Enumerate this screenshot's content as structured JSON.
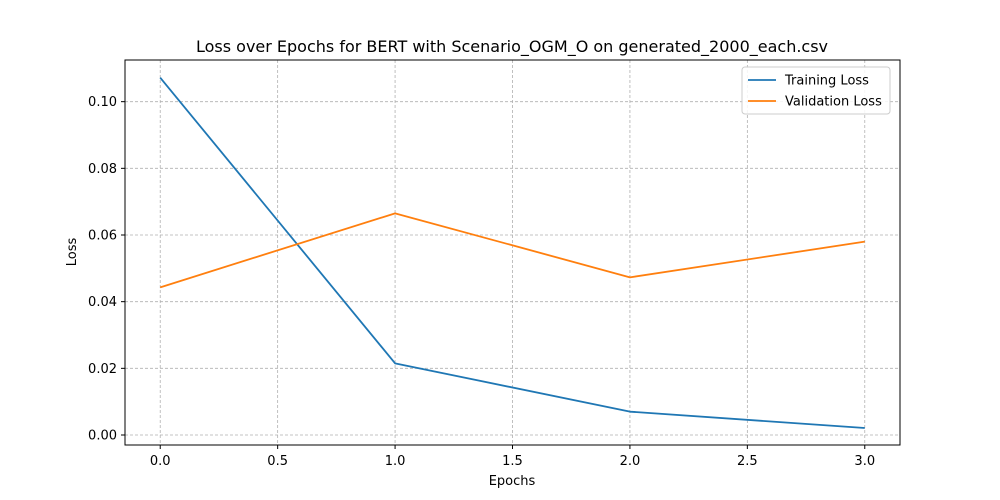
{
  "chart_data": {
    "type": "line",
    "title": "Loss over Epochs for BERT with Scenario_OGM_O on generated_2000_each.csv",
    "xlabel": "Epochs",
    "ylabel": "Loss",
    "x": [
      0,
      1,
      2,
      3
    ],
    "xlim": [
      -0.15,
      3.15
    ],
    "ylim": [
      -0.003,
      0.1125
    ],
    "xticks": [
      0.0,
      0.5,
      1.0,
      1.5,
      2.0,
      2.5,
      3.0
    ],
    "xtick_labels": [
      "0.0",
      "0.5",
      "1.0",
      "1.5",
      "2.0",
      "2.5",
      "3.0"
    ],
    "yticks": [
      0.0,
      0.02,
      0.04,
      0.06,
      0.08,
      0.1
    ],
    "ytick_labels": [
      "0.00",
      "0.02",
      "0.04",
      "0.06",
      "0.08",
      "0.10"
    ],
    "grid": true,
    "legend_position": "top-right",
    "series": [
      {
        "name": "Training Loss",
        "color": "#1f77b4",
        "values": [
          0.1072,
          0.0215,
          0.007,
          0.0021
        ]
      },
      {
        "name": "Validation Loss",
        "color": "#ff7f0e",
        "values": [
          0.0443,
          0.0665,
          0.0473,
          0.058
        ]
      }
    ]
  }
}
